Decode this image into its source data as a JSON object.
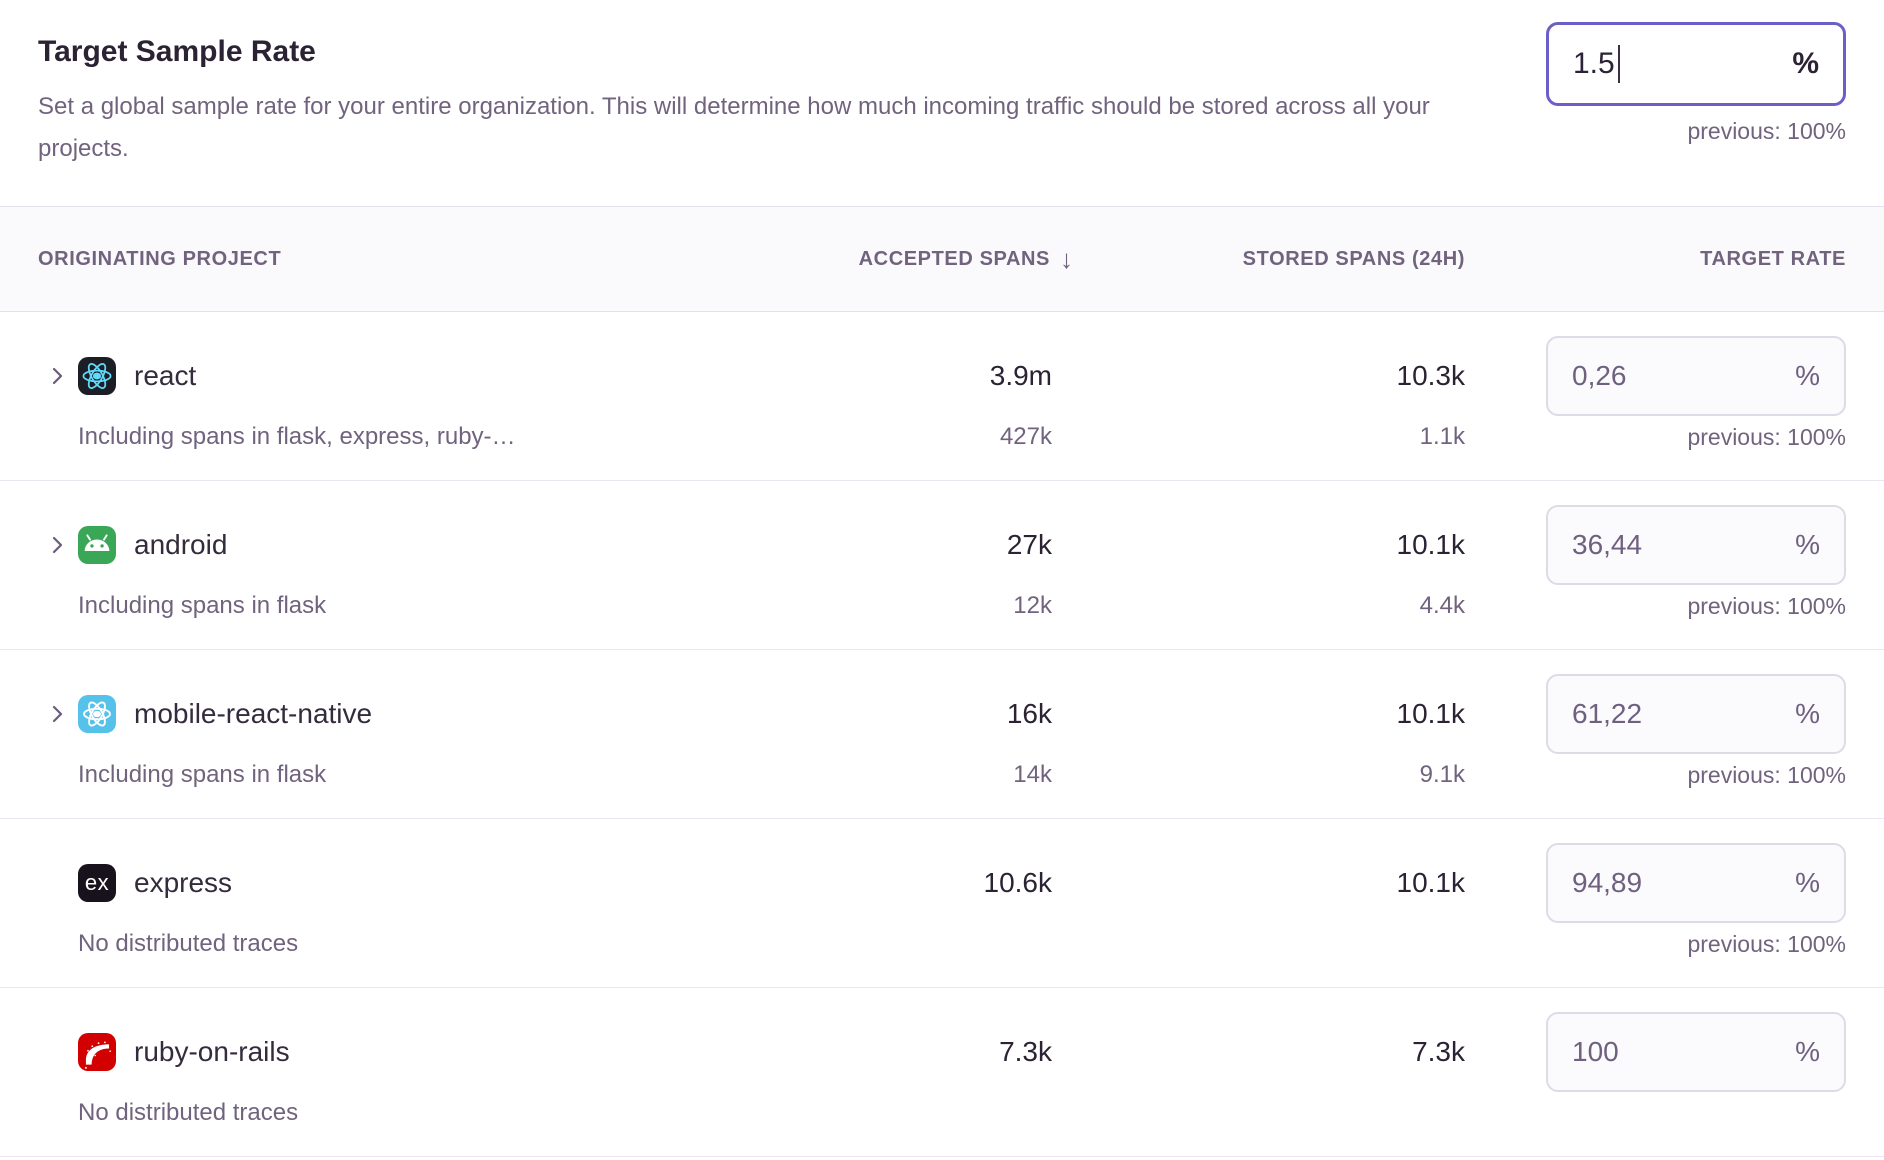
{
  "header": {
    "title": "Target Sample Rate",
    "description": "Set a global sample rate for your entire organization. This will determine how much incoming traffic should be stored across all your projects.",
    "input": {
      "value": "1.5",
      "suffix": "%"
    },
    "previous": "previous: 100%"
  },
  "table": {
    "columns": {
      "project": "Originating Project",
      "accepted": "Accepted Spans",
      "accepted_sort_icon": "↓",
      "stored": "Stored Spans (24h)",
      "rate": "Target Rate"
    },
    "rows": [
      {
        "name": "react",
        "icon": "react-icon",
        "expandable": true,
        "subtext": "Including spans in flask, express, ruby-…",
        "accepted": "3.9m",
        "accepted_sub": "427k",
        "stored": "10.3k",
        "stored_sub": "1.1k",
        "rate": "0,26",
        "suffix": "%",
        "previous": "previous: 100%"
      },
      {
        "name": "android",
        "icon": "android-icon",
        "expandable": true,
        "subtext": "Including spans in flask",
        "accepted": "27k",
        "accepted_sub": "12k",
        "stored": "10.1k",
        "stored_sub": "4.4k",
        "rate": "36,44",
        "suffix": "%",
        "previous": "previous: 100%"
      },
      {
        "name": "mobile-react-native",
        "icon": "react-native-icon",
        "expandable": true,
        "subtext": "Including spans in flask",
        "accepted": "16k",
        "accepted_sub": "14k",
        "stored": "10.1k",
        "stored_sub": "9.1k",
        "rate": "61,22",
        "suffix": "%",
        "previous": "previous: 100%"
      },
      {
        "name": "express",
        "icon": "express-icon",
        "expandable": false,
        "subtext": "No distributed traces",
        "accepted": "10.6k",
        "accepted_sub": "",
        "stored": "10.1k",
        "stored_sub": "",
        "rate": "94,89",
        "suffix": "%",
        "previous": "previous: 100%"
      },
      {
        "name": "ruby-on-rails",
        "icon": "rails-icon",
        "expandable": false,
        "subtext": "No distributed traces",
        "accepted": "7.3k",
        "accepted_sub": "",
        "stored": "7.3k",
        "stored_sub": "",
        "rate": "100",
        "suffix": "%",
        "previous": ""
      }
    ]
  },
  "colors": {
    "accent_purple": "#6c5fc7",
    "text_dark": "#2b2233",
    "text_muted": "#71637e",
    "react_cyan": "#61dafb",
    "react_bg": "#1b1e24",
    "react_native_blue": "#56c2ea",
    "android_green": "#3aa757",
    "rails_red": "#d30001",
    "express_bg": "#17121c"
  }
}
